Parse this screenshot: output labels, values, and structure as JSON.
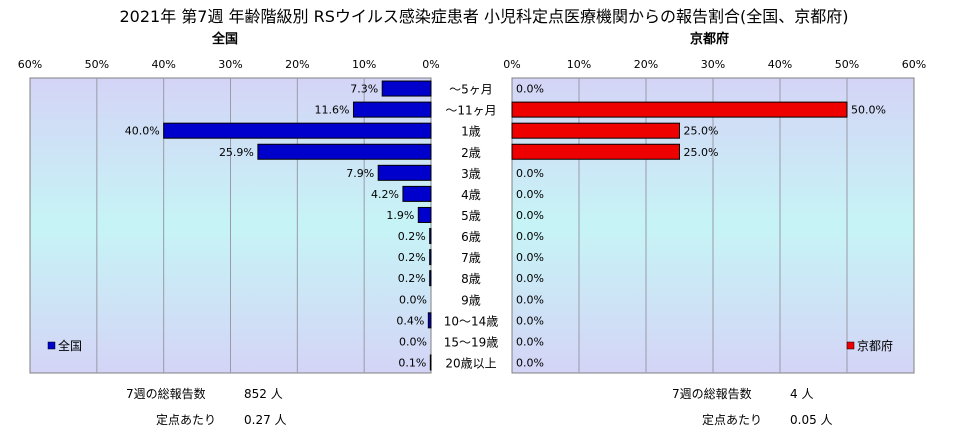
{
  "title": "2021年 第7週 年齢階級別 RSウイルス感染症患者 小児科定点医療機関からの報告割合(全国、京都府)",
  "chart_data": [
    {
      "type": "bar",
      "orientation": "horizontal",
      "direction": "right-to-left",
      "title": "全国",
      "categories": [
        "～5ヶ月",
        "～11ヶ月",
        "1歳",
        "2歳",
        "3歳",
        "4歳",
        "5歳",
        "6歳",
        "7歳",
        "8歳",
        "9歳",
        "10～14歳",
        "15～19歳",
        "20歳以上"
      ],
      "series": [
        {
          "name": "全国",
          "values": [
            7.3,
            11.6,
            40.0,
            25.9,
            7.9,
            4.2,
            1.9,
            0.2,
            0.2,
            0.2,
            0.0,
            0.4,
            0.0,
            0.1
          ],
          "color": "#0000cc"
        }
      ],
      "data_labels": [
        "7.3%",
        "11.6%",
        "40.0%",
        "25.9%",
        "7.9%",
        "4.2%",
        "1.9%",
        "0.2%",
        "0.2%",
        "0.2%",
        "0.0%",
        "0.4%",
        "0.0%",
        "0.1%"
      ],
      "xlim": [
        0,
        60
      ],
      "xticks": [
        "0%",
        "10%",
        "20%",
        "30%",
        "40%",
        "50%",
        "60%"
      ],
      "legend": "bottom-left",
      "grid": true
    },
    {
      "type": "bar",
      "orientation": "horizontal",
      "direction": "left-to-right",
      "title": "京都府",
      "categories": [
        "～5ヶ月",
        "～11ヶ月",
        "1歳",
        "2歳",
        "3歳",
        "4歳",
        "5歳",
        "6歳",
        "7歳",
        "8歳",
        "9歳",
        "10～14歳",
        "15～19歳",
        "20歳以上"
      ],
      "series": [
        {
          "name": "京都府",
          "values": [
            0.0,
            50.0,
            25.0,
            25.0,
            0.0,
            0.0,
            0.0,
            0.0,
            0.0,
            0.0,
            0.0,
            0.0,
            0.0,
            0.0
          ],
          "color": "#ee0000"
        }
      ],
      "data_labels": [
        "0.0%",
        "50.0%",
        "25.0%",
        "25.0%",
        "0.0%",
        "0.0%",
        "0.0%",
        "0.0%",
        "0.0%",
        "0.0%",
        "0.0%",
        "0.0%",
        "0.0%",
        "0.0%"
      ],
      "xlim": [
        0,
        60
      ],
      "xticks": [
        "0%",
        "10%",
        "20%",
        "30%",
        "40%",
        "50%",
        "60%"
      ],
      "legend": "bottom-right",
      "grid": true
    }
  ],
  "footer": {
    "left": {
      "total_label": "7週の総報告数",
      "total_value": "852 人",
      "per_label": "定点あたり",
      "per_value": "0.27 人"
    },
    "right": {
      "total_label": "7週の総報告数",
      "total_value": "4 人",
      "per_label": "定点あたり",
      "per_value": "0.05 人"
    }
  }
}
